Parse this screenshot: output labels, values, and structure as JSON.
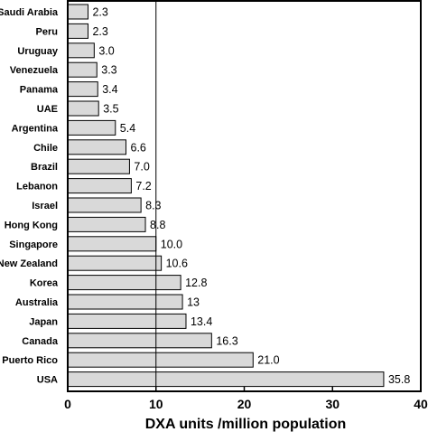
{
  "chart_data": {
    "type": "bar",
    "orientation": "horizontal",
    "categories": [
      "Saudi Arabia",
      "Peru",
      "Uruguay",
      "Venezuela",
      "Panama",
      "UAE",
      "Argentina",
      "Chile",
      "Brazil",
      "Lebanon",
      "Israel",
      "Hong Kong",
      "Singapore",
      "New Zealand",
      "Korea",
      "Australia",
      "Japan",
      "Canada",
      "Puerto Rico",
      "USA"
    ],
    "values": [
      2.3,
      2.3,
      3.0,
      3.3,
      3.4,
      3.5,
      5.4,
      6.6,
      7.0,
      7.2,
      8.3,
      8.8,
      10.0,
      10.6,
      12.8,
      13,
      13.4,
      16.3,
      21.0,
      35.8
    ],
    "value_labels": [
      "2.3",
      "2.3",
      "3.0",
      "3.3",
      "3.4",
      "3.5",
      "5.4",
      "6.6",
      "7.0",
      "7.2",
      "8.3",
      "8.8",
      "10.0",
      "10.6",
      "12.8",
      "13",
      "13.4",
      "16.3",
      "21.0",
      "35.8"
    ],
    "xlabel": "DXA units /million population",
    "xlim": [
      0,
      40
    ],
    "xticks": [
      "0",
      "10",
      "20",
      "30",
      "40"
    ],
    "reference_line_x": 10,
    "grid": false,
    "bar_color": "#d9d9d9",
    "bar_edge_color": "#000000"
  }
}
